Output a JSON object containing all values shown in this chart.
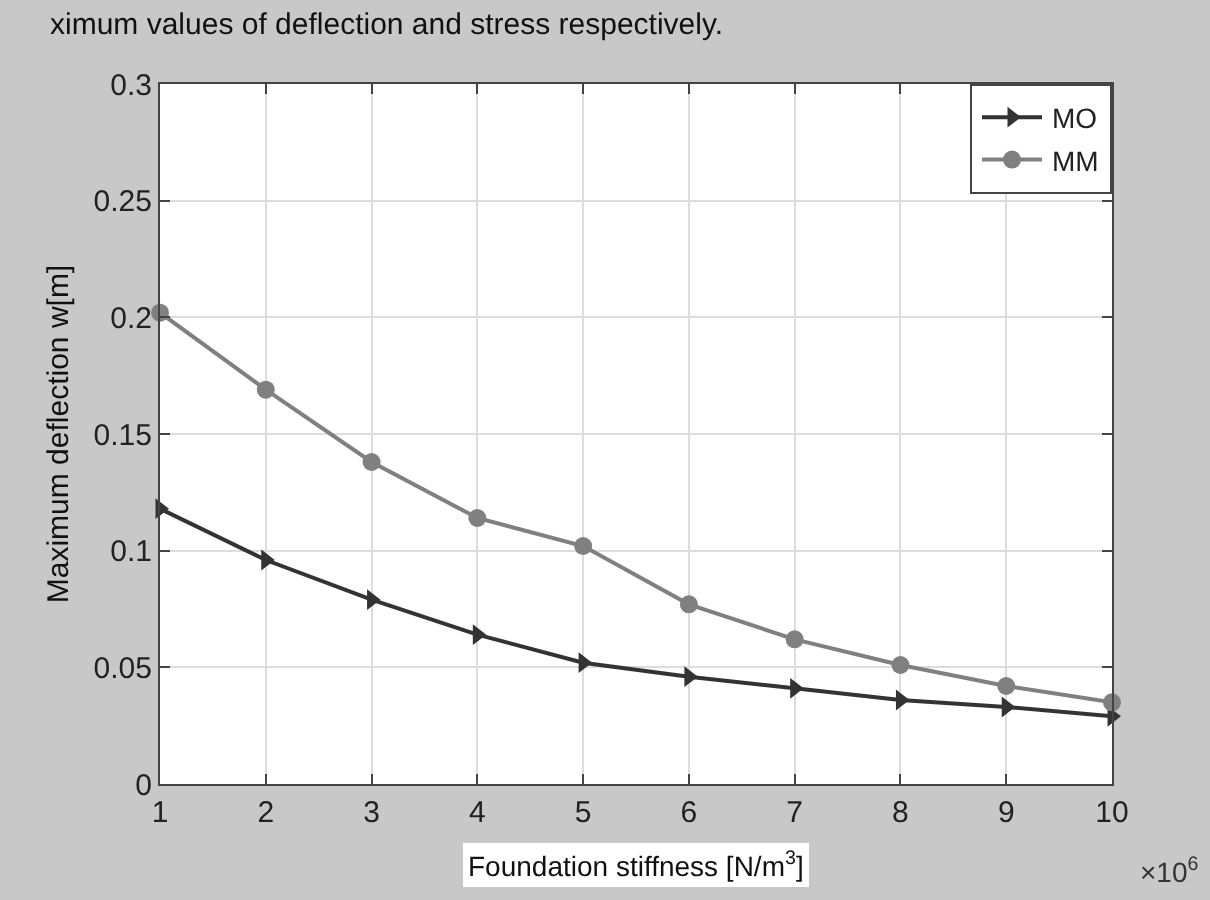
{
  "chart_data": {
    "type": "line",
    "xlabel": "Foundation stiffness [N/m$^{3}$]",
    "ylabel": "Maximum deflection w[m]",
    "annotations": [
      "ximum values of deflection and stress respectively.",
      "×10$^{6}$"
    ],
    "x": [
      1,
      2,
      3,
      4,
      5,
      6,
      7,
      8,
      9,
      10
    ],
    "series": [
      {
        "name": "MO",
        "color": "#333333",
        "marker": "triangle",
        "values": [
          0.118,
          0.096,
          0.079,
          0.064,
          0.052,
          0.046,
          0.041,
          0.036,
          0.033,
          0.029
        ]
      },
      {
        "name": "MM",
        "color": "#808080",
        "marker": "circle",
        "values": [
          0.202,
          0.169,
          0.138,
          0.114,
          0.102,
          0.077,
          0.062,
          0.051,
          0.042,
          0.035
        ]
      }
    ],
    "xlim": [
      1,
      10
    ],
    "xticks": [
      1,
      2,
      3,
      4,
      5,
      6,
      7,
      8,
      9,
      10
    ],
    "ylim": [
      0,
      0.3
    ],
    "yticks": [
      0,
      0.05,
      0.1,
      0.15,
      0.2,
      0.25,
      0.3
    ],
    "grid": true,
    "legend": "top right",
    "line_style": "solid"
  }
}
